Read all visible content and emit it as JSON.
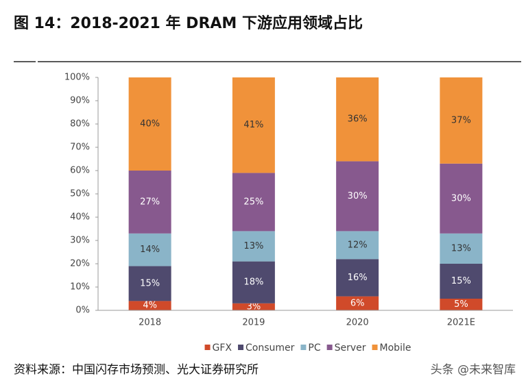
{
  "title": "图 14：2018-2021 年 DRAM 下游应用领域占比",
  "chart_data": {
    "type": "bar",
    "stacked": true,
    "categories": [
      "2018",
      "2019",
      "2020",
      "2021E"
    ],
    "series": [
      {
        "name": "GFX",
        "color": "#d04a2a",
        "values": [
          4,
          3,
          6,
          5
        ],
        "value_labels": [
          "4%",
          "3%",
          "6%",
          "5%"
        ]
      },
      {
        "name": "Consumer",
        "color": "#4f4a6e",
        "values": [
          15,
          18,
          16,
          15
        ],
        "value_labels": [
          "15%",
          "18%",
          "16%",
          "15%"
        ]
      },
      {
        "name": "PC",
        "color": "#8ab4c8",
        "values": [
          14,
          13,
          12,
          13
        ],
        "value_labels": [
          "14%",
          "13%",
          "12%",
          "13%"
        ]
      },
      {
        "name": "Server",
        "color": "#87598e",
        "values": [
          27,
          25,
          30,
          30
        ],
        "value_labels": [
          "27%",
          "25%",
          "30%",
          "30%"
        ]
      },
      {
        "name": "Mobile",
        "color": "#f0923a",
        "values": [
          40,
          41,
          36,
          37
        ],
        "value_labels": [
          "40%",
          "41%",
          "36%",
          "37%"
        ]
      }
    ],
    "ylim": [
      0,
      100
    ],
    "yticks": [
      {
        "value": 0,
        "label": "0%"
      },
      {
        "value": 10,
        "label": "10%"
      },
      {
        "value": 20,
        "label": "20%"
      },
      {
        "value": 30,
        "label": "30%"
      },
      {
        "value": 40,
        "label": "40%"
      },
      {
        "value": 50,
        "label": "50%"
      },
      {
        "value": 60,
        "label": "60%"
      },
      {
        "value": 70,
        "label": "70%"
      },
      {
        "value": 80,
        "label": "80%"
      },
      {
        "value": 90,
        "label": "90%"
      },
      {
        "value": 100,
        "label": "100%"
      }
    ],
    "legend": "bottom"
  },
  "source": "资料来源：中国闪存市场预测、光大证券研究所",
  "watermark": "头条 @未来智库"
}
